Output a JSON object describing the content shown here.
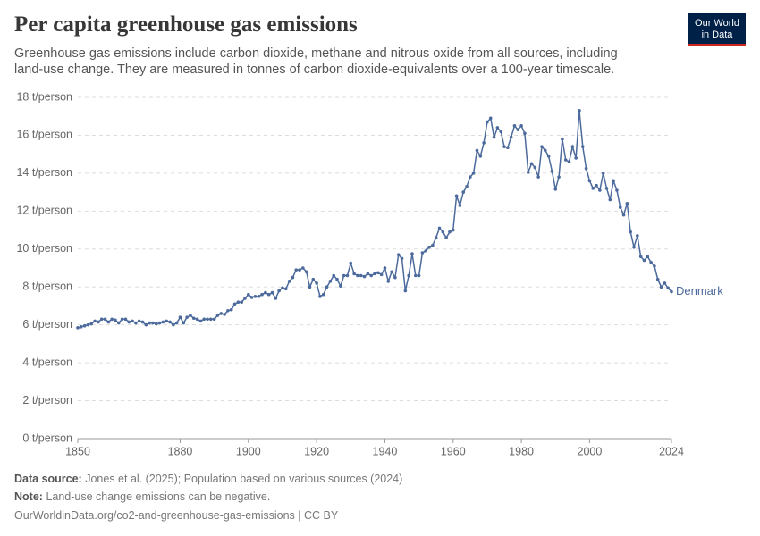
{
  "chart_data": {
    "type": "line",
    "title": "Per capita greenhouse gas emissions",
    "subtitle": "Greenhouse gas emissions include carbon dioxide, methane and nitrous oxide from all sources, including land-use change. They are measured in tonnes of carbon dioxide-equivalents over a 100-year timescale.",
    "x": [
      1850,
      1851,
      1852,
      1853,
      1854,
      1855,
      1856,
      1857,
      1858,
      1859,
      1860,
      1861,
      1862,
      1863,
      1864,
      1865,
      1866,
      1867,
      1868,
      1869,
      1870,
      1871,
      1872,
      1873,
      1874,
      1875,
      1876,
      1877,
      1878,
      1879,
      1880,
      1881,
      1882,
      1883,
      1884,
      1885,
      1886,
      1887,
      1888,
      1889,
      1890,
      1891,
      1892,
      1893,
      1894,
      1895,
      1896,
      1897,
      1898,
      1899,
      1900,
      1901,
      1902,
      1903,
      1904,
      1905,
      1906,
      1907,
      1908,
      1909,
      1910,
      1911,
      1912,
      1913,
      1914,
      1915,
      1916,
      1917,
      1918,
      1919,
      1920,
      1921,
      1922,
      1923,
      1924,
      1925,
      1926,
      1927,
      1928,
      1929,
      1930,
      1931,
      1932,
      1933,
      1934,
      1935,
      1936,
      1937,
      1938,
      1939,
      1940,
      1941,
      1942,
      1943,
      1944,
      1945,
      1946,
      1947,
      1948,
      1949,
      1950,
      1951,
      1952,
      1953,
      1954,
      1955,
      1956,
      1957,
      1958,
      1959,
      1960,
      1961,
      1962,
      1963,
      1964,
      1965,
      1966,
      1967,
      1968,
      1969,
      1970,
      1971,
      1972,
      1973,
      1974,
      1975,
      1976,
      1977,
      1978,
      1979,
      1980,
      1981,
      1982,
      1983,
      1984,
      1985,
      1986,
      1987,
      1988,
      1989,
      1990,
      1991,
      1992,
      1993,
      1994,
      1995,
      1996,
      1997,
      1998,
      1999,
      2000,
      2001,
      2002,
      2003,
      2004,
      2005,
      2006,
      2007,
      2008,
      2009,
      2010,
      2011,
      2012,
      2013,
      2014,
      2015,
      2016,
      2017,
      2018,
      2019,
      2020,
      2021,
      2022,
      2023,
      2024
    ],
    "series": [
      {
        "name": "Denmark",
        "color": "#4c6a9c",
        "values": [
          5.85,
          5.9,
          5.95,
          6.0,
          6.05,
          6.2,
          6.15,
          6.3,
          6.3,
          6.15,
          6.3,
          6.25,
          6.1,
          6.3,
          6.3,
          6.15,
          6.2,
          6.1,
          6.2,
          6.15,
          6.0,
          6.1,
          6.1,
          6.05,
          6.1,
          6.15,
          6.2,
          6.15,
          6.0,
          6.1,
          6.4,
          6.1,
          6.4,
          6.5,
          6.35,
          6.3,
          6.2,
          6.3,
          6.3,
          6.3,
          6.3,
          6.5,
          6.6,
          6.55,
          6.75,
          6.8,
          7.1,
          7.2,
          7.2,
          7.4,
          7.6,
          7.45,
          7.5,
          7.5,
          7.6,
          7.7,
          7.6,
          7.7,
          7.4,
          7.8,
          7.95,
          7.9,
          8.3,
          8.5,
          8.9,
          8.9,
          9.0,
          8.8,
          8.0,
          8.4,
          8.2,
          7.5,
          7.6,
          8.0,
          8.3,
          8.6,
          8.4,
          8.05,
          8.6,
          8.6,
          9.25,
          8.7,
          8.6,
          8.6,
          8.55,
          8.7,
          8.6,
          8.7,
          8.75,
          8.65,
          9.0,
          8.3,
          8.8,
          8.5,
          9.7,
          9.5,
          7.8,
          8.6,
          9.75,
          8.6,
          8.6,
          9.8,
          9.9,
          10.1,
          10.2,
          10.6,
          11.1,
          10.9,
          10.6,
          10.9,
          11.0,
          12.8,
          12.3,
          13.0,
          13.3,
          13.8,
          14.0,
          15.2,
          14.9,
          15.6,
          16.7,
          16.9,
          15.9,
          16.4,
          16.2,
          15.4,
          15.35,
          15.9,
          16.5,
          16.3,
          16.5,
          16.1,
          14.05,
          14.5,
          14.3,
          13.8,
          15.4,
          15.2,
          14.9,
          14.1,
          13.15,
          13.8,
          15.8,
          14.7,
          14.6,
          15.4,
          14.8,
          17.3,
          15.4,
          14.25,
          13.6,
          13.2,
          13.35,
          13.1,
          14.0,
          13.2,
          12.6,
          13.6,
          13.1,
          12.2,
          11.8,
          12.4,
          10.9,
          10.1,
          10.7,
          9.6,
          9.4,
          9.6,
          9.3,
          9.1,
          8.4,
          8.0,
          8.2,
          7.95,
          7.75
        ]
      }
    ],
    "xlim": [
      1850,
      2024
    ],
    "ylim": [
      0,
      18
    ],
    "xticks": [
      1850,
      1880,
      1900,
      1920,
      1940,
      1960,
      1980,
      2000,
      2024
    ],
    "yticks": [
      {
        "value": 0,
        "label": "0 t/person"
      },
      {
        "value": 2,
        "label": "2 t/person"
      },
      {
        "value": 4,
        "label": "4 t/person"
      },
      {
        "value": 6,
        "label": "6 t/person"
      },
      {
        "value": 8,
        "label": "8 t/person"
      },
      {
        "value": 10,
        "label": "10 t/person"
      },
      {
        "value": 12,
        "label": "12 t/person"
      },
      {
        "value": 14,
        "label": "14 t/person"
      },
      {
        "value": 16,
        "label": "16 t/person"
      },
      {
        "value": 18,
        "label": "18 t/person"
      }
    ],
    "grid": true
  },
  "footer": {
    "source_label": "Data source:",
    "source_text": "Jones et al. (2025); Population based on various sources (2024)",
    "note_label": "Note:",
    "note_text": "Land-use change emissions can be negative.",
    "url": "OurWorldinData.org/co2-and-greenhouse-gas-emissions | CC BY"
  },
  "logo": {
    "line1": "Our World",
    "line2": "in Data"
  }
}
